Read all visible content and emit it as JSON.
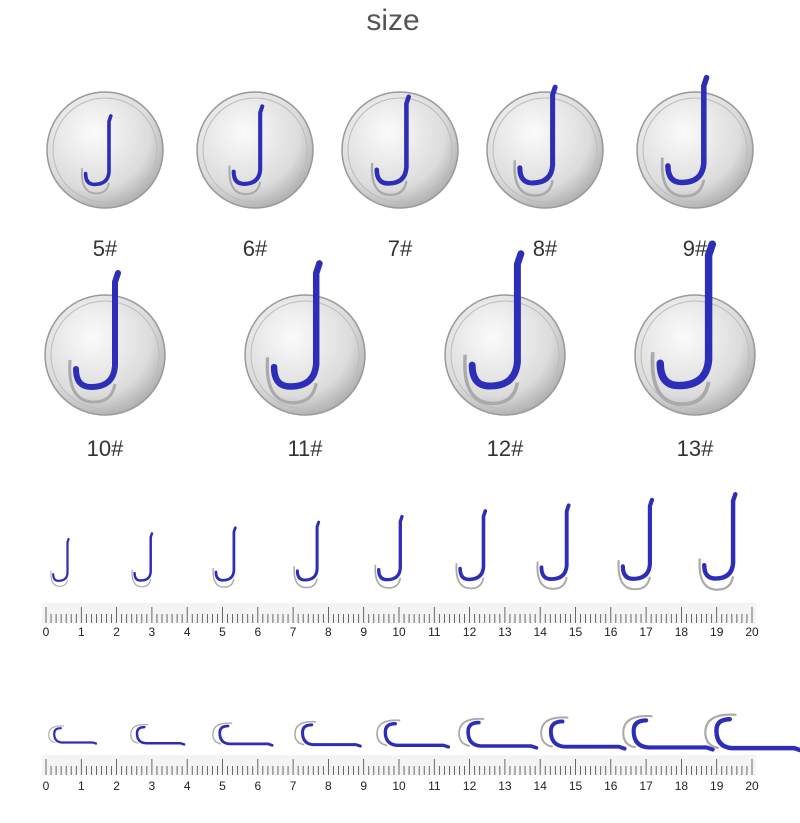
{
  "title": "size",
  "coins": [
    "5#",
    "6#",
    "7#",
    "8#",
    "9#",
    "10#",
    "11#",
    "12#",
    "13#"
  ],
  "ruler_top": {
    "labels": [
      "0",
      "1",
      "2",
      "3",
      "4",
      "5",
      "6",
      "7",
      "8",
      "9",
      "10",
      "11",
      "12",
      "13",
      "14",
      "15",
      "16",
      "17",
      "18",
      "19",
      "20"
    ]
  },
  "ruler_bottom": {
    "labels": [
      "0",
      "1",
      "2",
      "3",
      "4",
      "5",
      "6",
      "7",
      "8",
      "9",
      "10",
      "11",
      "12",
      "13",
      "14",
      "15",
      "16",
      "17",
      "18",
      "19",
      "20"
    ]
  }
}
